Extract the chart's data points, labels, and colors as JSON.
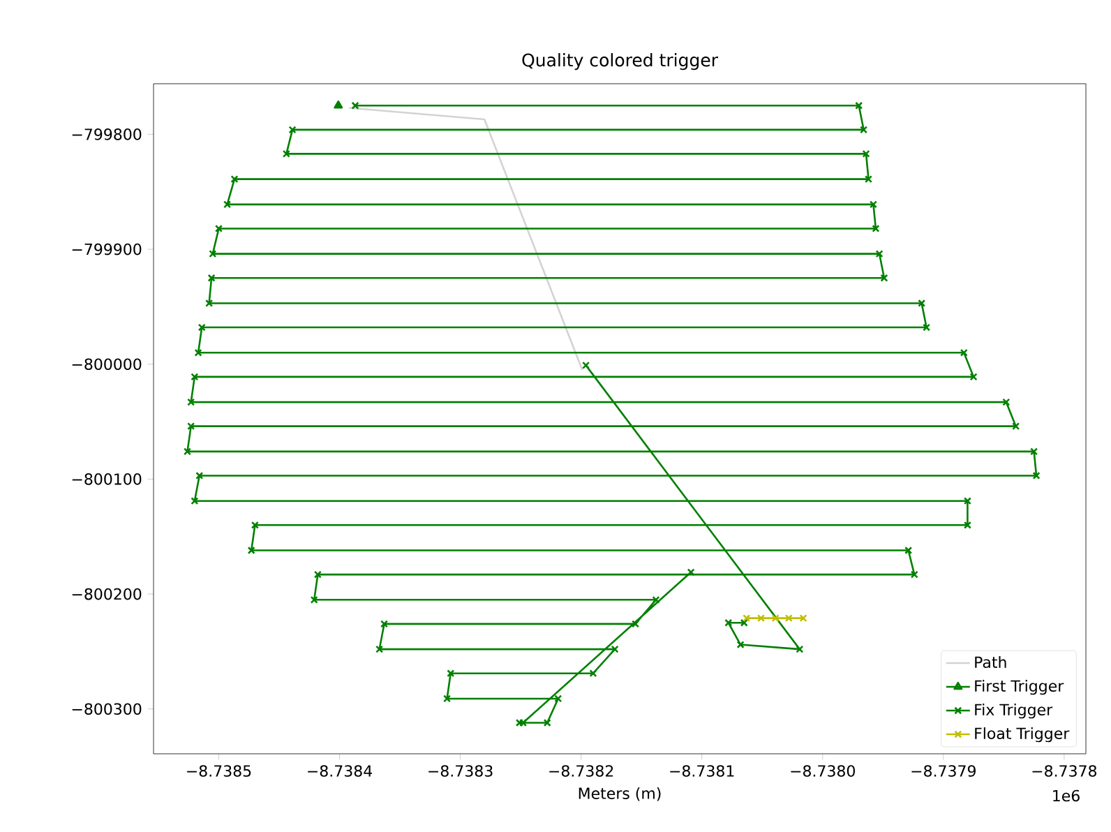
{
  "chart_data": {
    "type": "line",
    "title": "Quality colored trigger",
    "xlabel": "Meters (m)",
    "annotations": [
      "1e6"
    ],
    "xlim": [
      -8.738554,
      -8.737782
    ],
    "ylim": [
      -800339,
      -799756
    ],
    "xticks": [
      {
        "value": -8.7385,
        "label": "−8.7385"
      },
      {
        "value": -8.7384,
        "label": "−8.7384"
      },
      {
        "value": -8.7383,
        "label": "−8.7383"
      },
      {
        "value": -8.7382,
        "label": "−8.7382"
      },
      {
        "value": -8.7381,
        "label": "−8.7381"
      },
      {
        "value": -8.738,
        "label": "−8.7380"
      },
      {
        "value": -8.7379,
        "label": "−8.7379"
      },
      {
        "value": -8.7378,
        "label": "−8.7378"
      }
    ],
    "yticks": [
      {
        "value": -799800,
        "label": "−799800"
      },
      {
        "value": -799900,
        "label": "−799900"
      },
      {
        "value": -800000,
        "label": "−800000"
      },
      {
        "value": -800100,
        "label": "−800100"
      },
      {
        "value": -800200,
        "label": "−800200"
      },
      {
        "value": -800300,
        "label": "−800300"
      }
    ],
    "legend": "bottom right",
    "series": [
      {
        "name": "Path",
        "color": "#d3d3d3",
        "marker": "none",
        "x": [
          -8.738392,
          -8.73828,
          -8.738199
        ],
        "values": [
          -799777,
          -799787,
          -800005
        ]
      },
      {
        "name": "First Trigger",
        "color": "#008000",
        "marker": "triangle",
        "x": [
          -8.738401
        ],
        "values": [
          -799775
        ]
      },
      {
        "name": "Fix Trigger",
        "color": "#008000",
        "marker": "cross",
        "x": [
          -8.738387,
          -8.73797,
          -8.737966,
          -8.738439,
          -8.738444,
          -8.737964,
          -8.737962,
          -8.738487,
          -8.738493,
          -8.737958,
          -8.737956,
          -8.7385,
          -8.738505,
          -8.737953,
          -8.737949,
          -8.738506,
          -8.738508,
          -8.737918,
          -8.737914,
          -8.738514,
          -8.738517,
          -8.737883,
          -8.737875,
          -8.73852,
          -8.738523,
          -8.737848,
          -8.73784,
          -8.738523,
          -8.738526,
          -8.737825,
          -8.737823,
          -8.738516,
          -8.73852,
          -8.73788,
          -8.73788,
          -8.73847,
          -8.738473,
          -8.737929,
          -8.737924,
          -8.738418,
          -8.738421,
          -8.738138,
          -8.738155,
          -8.738363,
          -8.738367,
          -8.738172,
          -8.73819,
          -8.738308,
          -8.738311,
          -8.738219,
          -8.738228,
          -8.738251,
          -8.738248,
          -8.738109,
          null,
          -8.738196,
          -8.738019,
          -8.738068,
          -8.738078,
          -8.738065
        ],
        "values": [
          -799775,
          -799775,
          -799796,
          -799796,
          -799817,
          -799817,
          -799839,
          -799839,
          -799861,
          -799861,
          -799882,
          -799882,
          -799904,
          -799904,
          -799925,
          -799925,
          -799947,
          -799947,
          -799968,
          -799968,
          -799990,
          -799990,
          -800011,
          -800011,
          -800033,
          -800033,
          -800054,
          -800054,
          -800076,
          -800076,
          -800097,
          -800097,
          -800119,
          -800119,
          -800140,
          -800140,
          -800162,
          -800162,
          -800183,
          -800183,
          -800205,
          -800205,
          -800226,
          -800226,
          -800248,
          -800248,
          -800269,
          -800269,
          -800291,
          -800291,
          -800312,
          -800312,
          -800312,
          -800181,
          null,
          -800001,
          -800248,
          -800244,
          -800225,
          -800225
        ]
      },
      {
        "name": "Float Trigger",
        "color": "#bfbf00",
        "marker": "cross",
        "x": [
          -8.738063,
          -8.738051,
          -8.738039,
          -8.738028,
          -8.738016
        ],
        "values": [
          -800221,
          -800221,
          -800221,
          -800221,
          -800221
        ]
      }
    ]
  }
}
